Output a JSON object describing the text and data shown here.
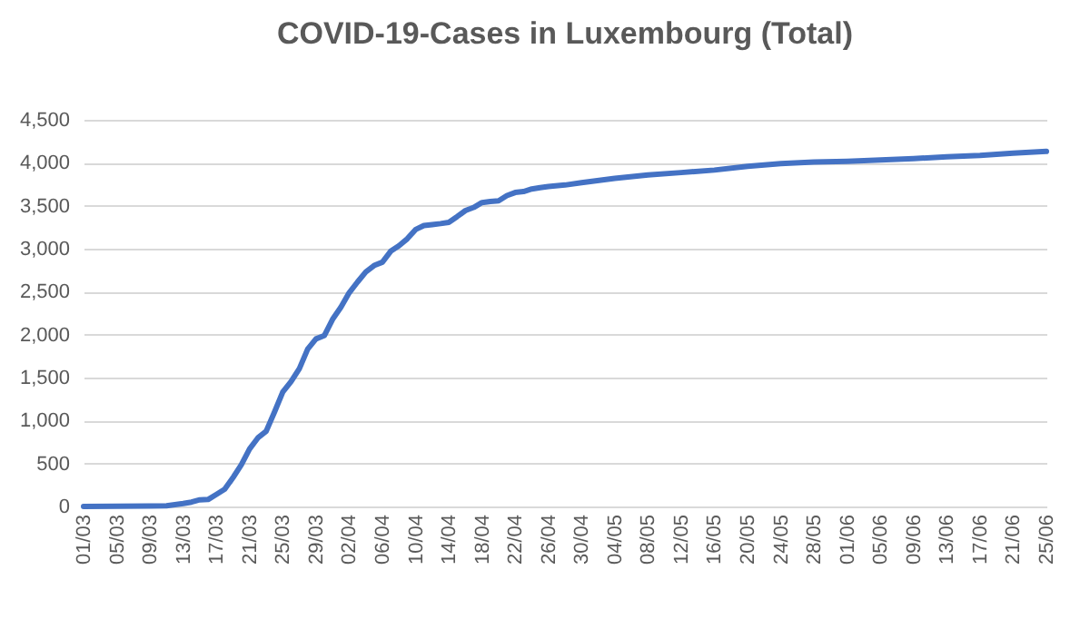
{
  "chart_data": {
    "type": "line",
    "title": "COVID-19-Cases in Luxembourg (Total)",
    "x": [
      "--03-01",
      "--03-05",
      "--03-09",
      "--03-11",
      "--03-13",
      "--03-14",
      "--03-15",
      "--03-16",
      "--03-17",
      "--03-18",
      "--03-19",
      "--03-20",
      "--03-21",
      "--03-22",
      "--03-23",
      "--03-24",
      "--03-25",
      "--03-26",
      "--03-27",
      "--03-28",
      "--03-29",
      "--03-30",
      "--03-31",
      "--04-01",
      "--04-02",
      "--04-03",
      "--04-04",
      "--04-05",
      "--04-06",
      "--04-07",
      "--04-08",
      "--04-09",
      "--04-10",
      "--04-11",
      "--04-12",
      "--04-13",
      "--04-14",
      "--04-15",
      "--04-16",
      "--04-17",
      "--04-18",
      "--04-19",
      "--04-20",
      "--04-21",
      "--04-22",
      "--04-23",
      "--04-24",
      "--04-25",
      "--04-26",
      "--04-28",
      "--04-30",
      "--05-04",
      "--05-08",
      "--05-12",
      "--05-16",
      "--05-20",
      "--05-24",
      "--05-28",
      "--06-01",
      "--06-05",
      "--06-09",
      "--06-13",
      "--06-17",
      "--06-21",
      "--06-25"
    ],
    "series": [
      {
        "color": "#4472c4",
        "values": [
          1,
          2,
          5,
          7,
          34,
          51,
          77,
          81,
          140,
          200,
          335,
          484,
          670,
          798,
          875,
          1099,
          1333,
          1453,
          1605,
          1831,
          1950,
          1988,
          2178,
          2319,
          2487,
          2612,
          2729,
          2804,
          2843,
          2970,
          3034,
          3115,
          3223,
          3270,
          3281,
          3292,
          3307,
          3373,
          3444,
          3480,
          3537,
          3550,
          3558,
          3618,
          3654,
          3665,
          3695,
          3711,
          3723,
          3741,
          3769,
          3819,
          3859,
          3886,
          3915,
          3958,
          3990,
          4008,
          4018,
          4032,
          4049,
          4070,
          4085,
          4113,
          4133
        ]
      }
    ],
    "xlim": [
      "--03-01",
      "--06-25"
    ],
    "xticks": [
      {
        "value": "--03-01",
        "label": "01/03"
      },
      {
        "value": "--03-05",
        "label": "05/03"
      },
      {
        "value": "--03-09",
        "label": "09/03"
      },
      {
        "value": "--03-13",
        "label": "13/03"
      },
      {
        "value": "--03-17",
        "label": "17/03"
      },
      {
        "value": "--03-21",
        "label": "21/03"
      },
      {
        "value": "--03-25",
        "label": "25/03"
      },
      {
        "value": "--03-29",
        "label": "29/03"
      },
      {
        "value": "--04-02",
        "label": "02/04"
      },
      {
        "value": "--04-06",
        "label": "06/04"
      },
      {
        "value": "--04-10",
        "label": "10/04"
      },
      {
        "value": "--04-14",
        "label": "14/04"
      },
      {
        "value": "--04-18",
        "label": "18/04"
      },
      {
        "value": "--04-22",
        "label": "22/04"
      },
      {
        "value": "--04-26",
        "label": "26/04"
      },
      {
        "value": "--04-30",
        "label": "30/04"
      },
      {
        "value": "--05-04",
        "label": "04/05"
      },
      {
        "value": "--05-08",
        "label": "08/05"
      },
      {
        "value": "--05-12",
        "label": "12/05"
      },
      {
        "value": "--05-16",
        "label": "16/05"
      },
      {
        "value": "--05-20",
        "label": "20/05"
      },
      {
        "value": "--05-24",
        "label": "24/05"
      },
      {
        "value": "--05-28",
        "label": "28/05"
      },
      {
        "value": "--06-01",
        "label": "01/06"
      },
      {
        "value": "--06-05",
        "label": "05/06"
      },
      {
        "value": "--06-09",
        "label": "09/06"
      },
      {
        "value": "--06-13",
        "label": "13/06"
      },
      {
        "value": "--06-17",
        "label": "17/06"
      },
      {
        "value": "--06-21",
        "label": "21/06"
      },
      {
        "value": "--06-25",
        "label": "25/06"
      }
    ],
    "ylim": [
      0,
      4500
    ],
    "yticks": [
      {
        "value": 0,
        "label": "0"
      },
      {
        "value": 500,
        "label": "500"
      },
      {
        "value": 1000,
        "label": "1,000"
      },
      {
        "value": 1500,
        "label": "1,500"
      },
      {
        "value": 2000,
        "label": "2,000"
      },
      {
        "value": 2500,
        "label": "2,500"
      },
      {
        "value": 3000,
        "label": "3,000"
      },
      {
        "value": 3500,
        "label": "3,500"
      },
      {
        "value": 4000,
        "label": "4,000"
      },
      {
        "value": 4500,
        "label": "4,500"
      }
    ],
    "grid": "y"
  }
}
